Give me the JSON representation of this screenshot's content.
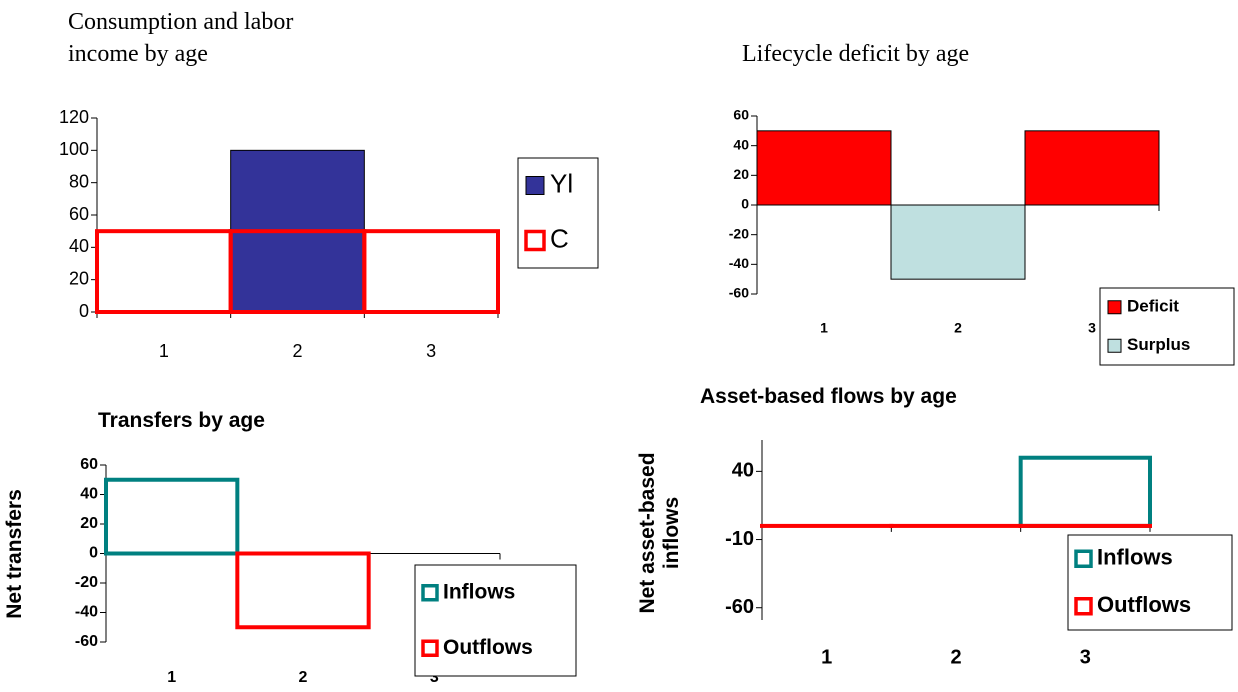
{
  "chart_data": [
    {
      "type": "bar",
      "title": "Consumption and labor income by age",
      "categories": [
        "1",
        "2",
        "3"
      ],
      "series": [
        {
          "name": "Yl",
          "color": "#333399",
          "fill": true,
          "values": [
            null,
            100,
            null
          ]
        },
        {
          "name": "C",
          "color": "#ff0000",
          "fill": false,
          "values": [
            50,
            50,
            50
          ]
        }
      ],
      "ylim": [
        0,
        120
      ],
      "yticks": [
        0,
        20,
        40,
        60,
        80,
        100,
        120
      ],
      "legend": "right"
    },
    {
      "type": "bar",
      "title": "Lifecycle deficit by age",
      "categories": [
        "1",
        "2",
        "3"
      ],
      "series": [
        {
          "name": "Deficit",
          "color": "#ff0000",
          "fill": true,
          "values": [
            50,
            null,
            50
          ]
        },
        {
          "name": "Surplus",
          "color": "#bfe0e0",
          "fill": true,
          "values": [
            null,
            -50,
            null
          ]
        }
      ],
      "ylim": [
        -60,
        60
      ],
      "yticks": [
        -60,
        -40,
        -20,
        0,
        20,
        40,
        60
      ],
      "legend": "bottom-right"
    },
    {
      "type": "bar",
      "title": "Transfers by age",
      "ylabel": "Net transfers",
      "categories": [
        "1",
        "2",
        "3"
      ],
      "series": [
        {
          "name": "Inflows",
          "color": "#008080",
          "fill": false,
          "values": [
            50,
            null,
            null
          ]
        },
        {
          "name": "Outflows",
          "color": "#ff0000",
          "fill": false,
          "values": [
            null,
            -50,
            null
          ]
        }
      ],
      "ylim": [
        -60,
        60
      ],
      "yticks": [
        -60,
        -40,
        -20,
        0,
        20,
        40,
        60
      ],
      "legend": "bottom-right"
    },
    {
      "type": "bar",
      "title": "Asset-based flows by age",
      "ylabel": "Net asset-based inflows",
      "categories": [
        "1",
        "2",
        "3"
      ],
      "series": [
        {
          "name": "Inflows",
          "color": "#008080",
          "fill": false,
          "values": [
            null,
            null,
            50
          ]
        },
        {
          "name": "Outflows",
          "color": "#ff0000",
          "fill": false,
          "values": [
            0,
            0,
            0
          ]
        }
      ],
      "ylim": [
        -69,
        63
      ],
      "yticks": [
        -60,
        -10,
        40
      ],
      "legend": "right"
    }
  ]
}
